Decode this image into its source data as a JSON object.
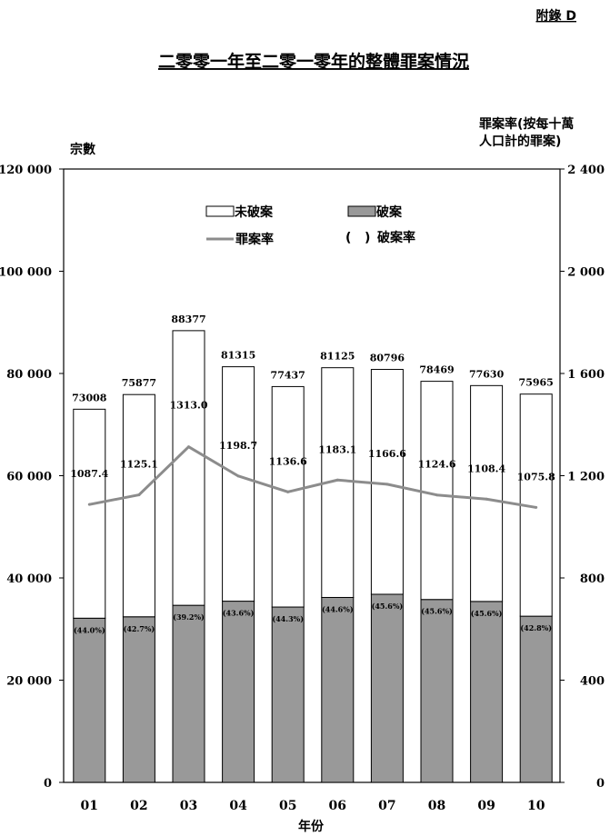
{
  "appendix_label": "附錄 D",
  "chart_data": {
    "type": "bar",
    "title": "二零零一年至二零一零年的整體罪案情況",
    "xlabel": "年份",
    "ylabel": "宗數",
    "y2label_line1": "罪案率(按每十萬",
    "y2label_line2": "人口計的罪案)",
    "categories": [
      "01",
      "02",
      "03",
      "04",
      "05",
      "06",
      "07",
      "08",
      "09",
      "10"
    ],
    "ylim": [
      0,
      120000
    ],
    "y2lim": [
      0,
      2400
    ],
    "y_ticks": [
      "0",
      "20 000",
      "40 000",
      "60 000",
      "80 000",
      "100 000",
      "120 000"
    ],
    "y_tick_values": [
      0,
      20000,
      40000,
      60000,
      80000,
      100000,
      120000
    ],
    "y2_ticks": [
      "0",
      "400",
      "800",
      "1 200",
      "1 600",
      "2 000",
      "2 400"
    ],
    "y2_tick_values": [
      0,
      400,
      800,
      1200,
      1600,
      2000,
      2400
    ],
    "totals": [
      73008,
      75877,
      88377,
      81315,
      77437,
      81125,
      80796,
      78469,
      77630,
      75965
    ],
    "total_labels": [
      "73008",
      "75877",
      "88377",
      "81315",
      "77437",
      "81125",
      "80796",
      "78469",
      "77630",
      "75965"
    ],
    "series": [
      {
        "name": "破案",
        "color": "#999999",
        "values": [
          32124,
          32399,
          34644,
          35453,
          34305,
          36182,
          36803,
          35782,
          35399,
          32513
        ]
      },
      {
        "name": "未破案",
        "color": "#ffffff",
        "values": [
          40884,
          43478,
          53733,
          45862,
          43132,
          44943,
          43993,
          42687,
          42231,
          43452
        ]
      },
      {
        "name": "罪案率",
        "color": "#8c8c8c",
        "axis": "right",
        "values": [
          1087.4,
          1125.1,
          1313.0,
          1198.7,
          1136.6,
          1183.1,
          1166.6,
          1124.6,
          1108.4,
          1075.8
        ]
      }
    ],
    "rate_labels": [
      "1087.4",
      "1125.1",
      "1313.0",
      "1198.7",
      "1136.6",
      "1183.1",
      "1166.6",
      "1124.6",
      "1108.4",
      "1075.8"
    ],
    "detection_labels": [
      "(44.0%)",
      "(42.7%)",
      "(39.2%)",
      "(43.6%)",
      "(44.3%)",
      "(44.6%)",
      "(45.6%)",
      "(45.6%)",
      "(45.6%)",
      "(42.8%)"
    ],
    "legend": {
      "undetected": "未破案",
      "detected": "破案",
      "rate": "罪案率",
      "detection_rate_symbol": "(   )",
      "detection_rate": "破案率"
    }
  }
}
